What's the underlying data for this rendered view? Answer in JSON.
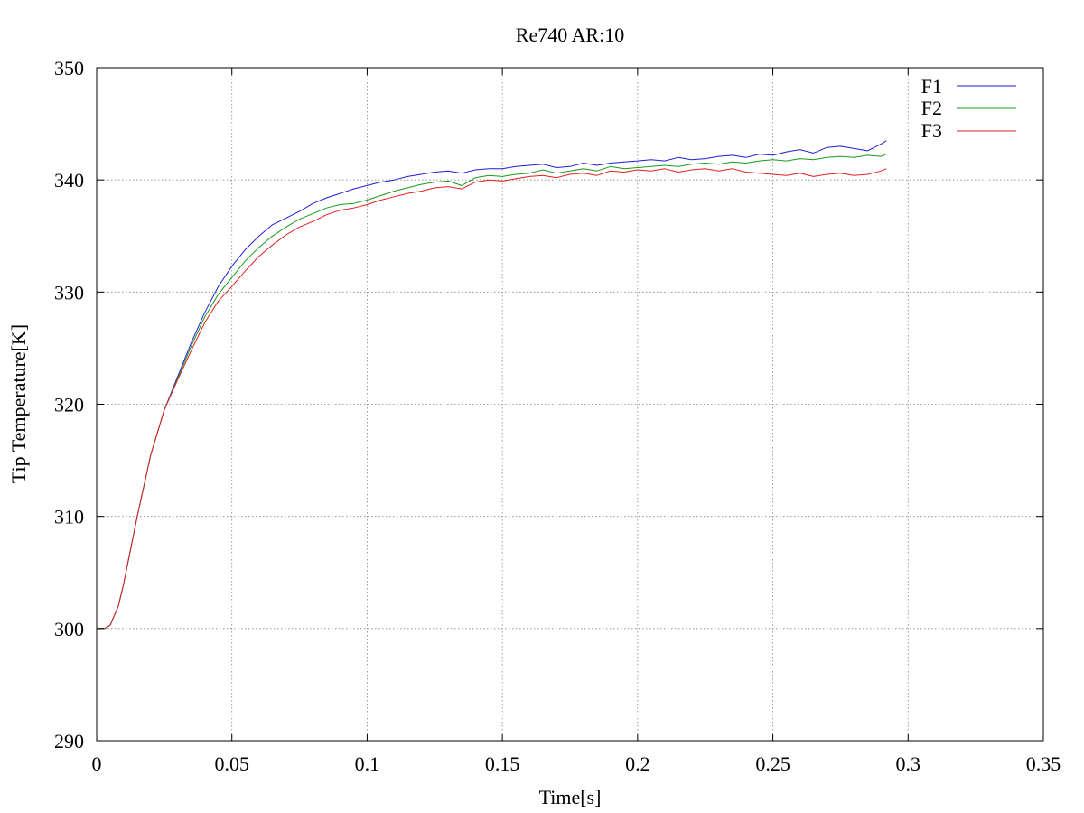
{
  "chart_data": {
    "type": "line",
    "title": "Re740 AR:10",
    "xlabel": "Time[s]",
    "ylabel": "Tip Temperature[K]",
    "xlim": [
      0,
      0.35
    ],
    "ylim": [
      290,
      350
    ],
    "xticks": [
      0,
      0.05,
      0.1,
      0.15,
      0.2,
      0.25,
      0.3,
      0.35
    ],
    "xtick_labels": [
      "0",
      "0.05",
      "0.1",
      "0.15",
      "0.2",
      "0.25",
      "0.3",
      "0.35"
    ],
    "yticks": [
      290,
      300,
      310,
      320,
      330,
      340,
      350
    ],
    "ytick_labels": [
      "290",
      "300",
      "310",
      "320",
      "330",
      "340",
      "350"
    ],
    "grid": true,
    "legend_position": "top-right",
    "series": [
      {
        "name": "F1",
        "color": "#1f1fd1",
        "x": [
          0,
          0.003,
          0.005,
          0.008,
          0.01,
          0.015,
          0.02,
          0.025,
          0.03,
          0.035,
          0.04,
          0.045,
          0.05,
          0.055,
          0.06,
          0.065,
          0.07,
          0.075,
          0.08,
          0.085,
          0.09,
          0.095,
          0.1,
          0.105,
          0.11,
          0.115,
          0.12,
          0.125,
          0.13,
          0.135,
          0.14,
          0.145,
          0.15,
          0.155,
          0.16,
          0.165,
          0.17,
          0.175,
          0.18,
          0.185,
          0.19,
          0.195,
          0.2,
          0.205,
          0.21,
          0.215,
          0.22,
          0.225,
          0.23,
          0.235,
          0.24,
          0.245,
          0.25,
          0.255,
          0.26,
          0.265,
          0.27,
          0.275,
          0.28,
          0.285,
          0.29,
          0.292
        ],
        "y": [
          300,
          300,
          300.3,
          302,
          304,
          310,
          315.5,
          319.5,
          322.5,
          325.5,
          328.2,
          330.5,
          332.3,
          333.8,
          335,
          336,
          336.6,
          337.2,
          337.9,
          338.4,
          338.8,
          339.2,
          339.5,
          339.8,
          340,
          340.3,
          340.5,
          340.7,
          340.8,
          340.6,
          340.9,
          341,
          341,
          341.2,
          341.3,
          341.4,
          341.1,
          341.2,
          341.5,
          341.3,
          341.5,
          341.6,
          341.7,
          341.8,
          341.7,
          342,
          341.8,
          341.9,
          342.1,
          342.2,
          342,
          342.3,
          342.2,
          342.5,
          342.7,
          342.4,
          342.9,
          343,
          342.8,
          342.6,
          343.2,
          343.5
        ]
      },
      {
        "name": "F2",
        "color": "#1a9a1a",
        "x": [
          0,
          0.003,
          0.005,
          0.008,
          0.01,
          0.015,
          0.02,
          0.025,
          0.03,
          0.035,
          0.04,
          0.045,
          0.05,
          0.055,
          0.06,
          0.065,
          0.07,
          0.075,
          0.08,
          0.085,
          0.09,
          0.095,
          0.1,
          0.105,
          0.11,
          0.115,
          0.12,
          0.125,
          0.13,
          0.135,
          0.14,
          0.145,
          0.15,
          0.155,
          0.16,
          0.165,
          0.17,
          0.175,
          0.18,
          0.185,
          0.19,
          0.195,
          0.2,
          0.205,
          0.21,
          0.215,
          0.22,
          0.225,
          0.23,
          0.235,
          0.24,
          0.245,
          0.25,
          0.255,
          0.26,
          0.265,
          0.27,
          0.275,
          0.28,
          0.285,
          0.29,
          0.292
        ],
        "y": [
          300,
          300,
          300.3,
          302,
          304,
          310,
          315.5,
          319.5,
          322.3,
          325.2,
          327.8,
          329.8,
          331.3,
          332.8,
          334,
          335,
          335.8,
          336.5,
          337,
          337.5,
          337.8,
          337.9,
          338.2,
          338.6,
          339,
          339.3,
          339.6,
          339.8,
          339.9,
          339.5,
          340.2,
          340.4,
          340.3,
          340.5,
          340.6,
          340.9,
          340.6,
          340.8,
          341,
          340.8,
          341.2,
          341,
          341.1,
          341.2,
          341.3,
          341.2,
          341.4,
          341.5,
          341.4,
          341.6,
          341.5,
          341.7,
          341.8,
          341.7,
          341.9,
          341.8,
          342,
          342.1,
          342,
          342.2,
          342.1,
          342.3
        ]
      },
      {
        "name": "F3",
        "color": "#e02020",
        "x": [
          0,
          0.003,
          0.005,
          0.008,
          0.01,
          0.015,
          0.02,
          0.025,
          0.03,
          0.035,
          0.04,
          0.045,
          0.05,
          0.055,
          0.06,
          0.065,
          0.07,
          0.075,
          0.08,
          0.085,
          0.09,
          0.095,
          0.1,
          0.105,
          0.11,
          0.115,
          0.12,
          0.125,
          0.13,
          0.135,
          0.14,
          0.145,
          0.15,
          0.155,
          0.16,
          0.165,
          0.17,
          0.175,
          0.18,
          0.185,
          0.19,
          0.195,
          0.2,
          0.205,
          0.21,
          0.215,
          0.22,
          0.225,
          0.23,
          0.235,
          0.24,
          0.245,
          0.25,
          0.255,
          0.26,
          0.265,
          0.27,
          0.275,
          0.28,
          0.285,
          0.29,
          0.292
        ],
        "y": [
          300,
          300,
          300.3,
          302,
          304,
          310,
          315.5,
          319.5,
          322.2,
          324.8,
          327.3,
          329.2,
          330.5,
          331.9,
          333.2,
          334.2,
          335.1,
          335.8,
          336.3,
          336.9,
          337.3,
          337.5,
          337.8,
          338.2,
          338.5,
          338.8,
          339,
          339.3,
          339.4,
          339.2,
          339.8,
          340,
          339.9,
          340.1,
          340.3,
          340.4,
          340.2,
          340.5,
          340.6,
          340.4,
          340.8,
          340.7,
          340.9,
          340.8,
          341,
          340.7,
          340.9,
          341,
          340.8,
          341,
          340.7,
          340.6,
          340.5,
          340.4,
          340.6,
          340.3,
          340.5,
          340.6,
          340.4,
          340.5,
          340.8,
          341
        ]
      }
    ]
  }
}
